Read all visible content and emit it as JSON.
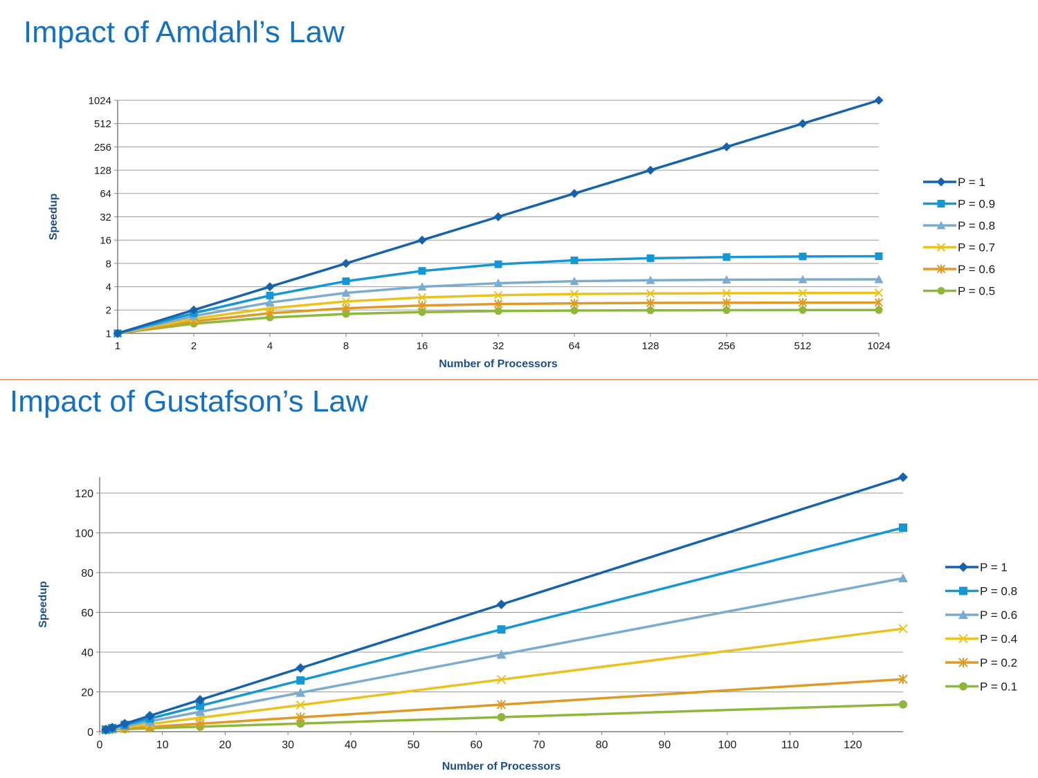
{
  "slide": {
    "amdahl_title": "Impact of Amdahl’s Law",
    "gustafson_title": "Impact of Gustafson’s Law",
    "title_color": "#1570be",
    "divider_color": "#f3a26c"
  },
  "chart_data": [
    {
      "type": "line",
      "title": "",
      "xlabel": "Number of Processors",
      "ylabel": "Speedup",
      "x_scale": "log2",
      "y_scale": "log2",
      "x": [
        1,
        2,
        4,
        8,
        16,
        32,
        64,
        128,
        256,
        512,
        1024
      ],
      "x_ticks": [
        "1",
        "2",
        "4",
        "8",
        "16",
        "32",
        "64",
        "128",
        "256",
        "512",
        "1024"
      ],
      "y_ticks": [
        1,
        2,
        4,
        8,
        16,
        32,
        64,
        128,
        256,
        512,
        1024
      ],
      "ylim": [
        1,
        1024
      ],
      "grid": true,
      "legend_position": "right",
      "series": [
        {
          "name": "P = 1",
          "color": "#1762ad",
          "marker": "diamond",
          "values": [
            1,
            2,
            4,
            8,
            16,
            32,
            64,
            128,
            256,
            512,
            1024
          ]
        },
        {
          "name": "P = 0.9",
          "color": "#1597d4",
          "marker": "square",
          "values": [
            1,
            1.82,
            3.08,
            4.71,
            6.4,
            7.8,
            8.77,
            9.34,
            9.66,
            9.83,
            9.91
          ]
        },
        {
          "name": "P = 0.8",
          "color": "#7aaccf",
          "marker": "triangle",
          "values": [
            1,
            1.67,
            2.5,
            3.33,
            4.0,
            4.44,
            4.71,
            4.85,
            4.92,
            4.96,
            4.98
          ]
        },
        {
          "name": "P = 0.7",
          "color": "#ebc21d",
          "marker": "x",
          "values": [
            1,
            1.54,
            2.11,
            2.58,
            2.91,
            3.11,
            3.22,
            3.27,
            3.3,
            3.31,
            3.33
          ]
        },
        {
          "name": "P = 0.6",
          "color": "#de9a24",
          "marker": "star",
          "values": [
            1,
            1.43,
            1.82,
            2.11,
            2.29,
            2.39,
            2.44,
            2.47,
            2.48,
            2.49,
            2.5
          ]
        },
        {
          "name": "P = 0.5",
          "color": "#8db83a",
          "marker": "circle",
          "values": [
            1,
            1.33,
            1.6,
            1.78,
            1.88,
            1.94,
            1.97,
            1.98,
            1.99,
            2.0,
            2.0
          ]
        }
      ]
    },
    {
      "type": "line",
      "title": "",
      "xlabel": "Number of Processors",
      "ylabel": "Speedup",
      "x": [
        1,
        2,
        4,
        8,
        16,
        32,
        64,
        128
      ],
      "x_ticks": [
        0,
        10,
        20,
        30,
        40,
        50,
        60,
        70,
        80,
        90,
        100,
        110,
        120
      ],
      "xlim": [
        0,
        128
      ],
      "y_ticks": [
        0,
        20,
        40,
        60,
        80,
        100,
        120
      ],
      "ylim": [
        0,
        128
      ],
      "grid": true,
      "legend_position": "right",
      "series": [
        {
          "name": "P = 1",
          "color": "#1762ad",
          "marker": "diamond",
          "values": [
            1,
            2,
            4,
            8,
            16,
            32,
            64,
            128
          ]
        },
        {
          "name": "P = 0.8",
          "color": "#1597d4",
          "marker": "square",
          "values": [
            1,
            1.8,
            3.4,
            6.6,
            13,
            25.8,
            51.4,
            102.6
          ]
        },
        {
          "name": "P = 0.6",
          "color": "#7aaccf",
          "marker": "triangle",
          "values": [
            1,
            1.6,
            2.8,
            5.2,
            10,
            19.6,
            38.8,
            77.2
          ]
        },
        {
          "name": "P = 0.4",
          "color": "#ebc21d",
          "marker": "x",
          "values": [
            1,
            1.4,
            2.2,
            3.8,
            7,
            13.4,
            26.2,
            51.8
          ]
        },
        {
          "name": "P = 0.2",
          "color": "#de9a24",
          "marker": "star",
          "values": [
            1,
            1.2,
            1.6,
            2.4,
            4,
            7.2,
            13.6,
            26.4
          ]
        },
        {
          "name": "P = 0.1",
          "color": "#8db83a",
          "marker": "circle",
          "values": [
            1,
            1.1,
            1.3,
            1.7,
            2.5,
            4.1,
            7.3,
            13.7
          ]
        }
      ]
    }
  ]
}
